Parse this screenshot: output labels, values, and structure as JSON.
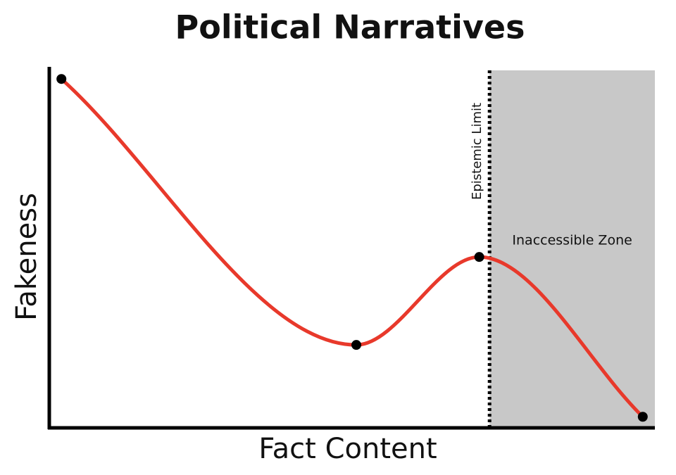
{
  "chart_data": {
    "type": "line",
    "title": "Political Narratives",
    "xlabel": "Fact Content",
    "ylabel": "Fakeness",
    "x": [
      2,
      50.7,
      71,
      98
    ],
    "series": [
      {
        "color": "#e8392b",
        "marker_color": "#000000",
        "values": [
          97.6,
          23.2,
          47.8,
          3.1
        ]
      }
    ],
    "xlim": [
      0,
      100
    ],
    "ylim": [
      0,
      100
    ],
    "vline": {
      "label": "Epistemic Limit",
      "x": 72.7,
      "style": "dotted",
      "color": "#000000"
    },
    "shaded_region": {
      "label": "Inaccessible Zone",
      "x": [
        72.7,
        100
      ],
      "color": "#c8c8c8"
    }
  }
}
